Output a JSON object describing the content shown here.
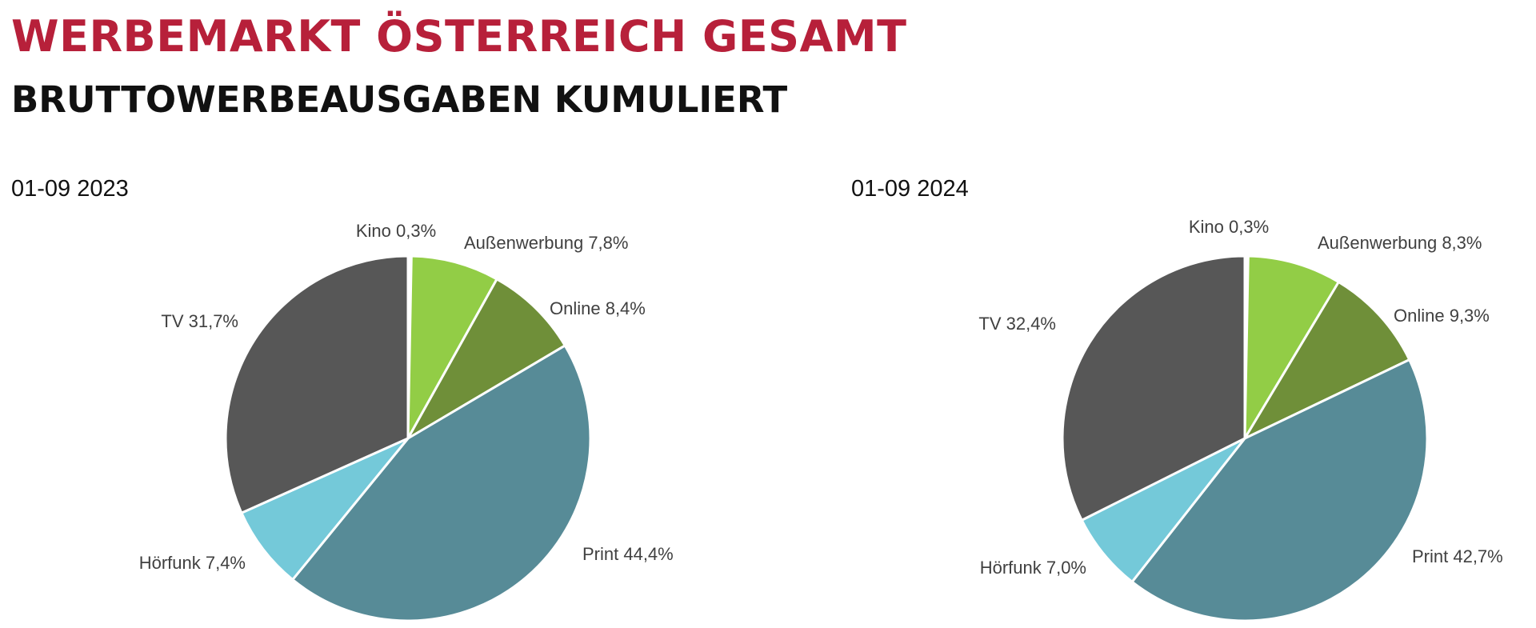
{
  "header": {
    "title": "WERBEMARKT ÖSTERREICH GESAMT",
    "subtitle": "BRUTTOWERBEAUSGABEN KUMULIERT"
  },
  "chart_data": [
    {
      "type": "pie",
      "title": "01-09 2023",
      "slices": [
        {
          "name": "Kino",
          "value": 0.3,
          "label": "Kino 0,3%",
          "color": "#ffffff"
        },
        {
          "name": "Außenwerbung",
          "value": 7.8,
          "label": "Außenwerbung 7,8%",
          "color": "#92cd46"
        },
        {
          "name": "Online",
          "value": 8.4,
          "label": "Online 8,4%",
          "color": "#6f8f39"
        },
        {
          "name": "Print",
          "value": 44.4,
          "label": "Print 44,4%",
          "color": "#578b97"
        },
        {
          "name": "Hörfunk",
          "value": 7.4,
          "label": "Hörfunk 7,4%",
          "color": "#74c9d9"
        },
        {
          "name": "TV",
          "value": 31.7,
          "label": "TV 31,7%",
          "color": "#575757"
        }
      ]
    },
    {
      "type": "pie",
      "title": "01-09 2024",
      "slices": [
        {
          "name": "Kino",
          "value": 0.3,
          "label": "Kino 0,3%",
          "color": "#ffffff"
        },
        {
          "name": "Außenwerbung",
          "value": 8.3,
          "label": "Außenwerbung 8,3%",
          "color": "#92cd46"
        },
        {
          "name": "Online",
          "value": 9.3,
          "label": "Online 9,3%",
          "color": "#6f8f39"
        },
        {
          "name": "Print",
          "value": 42.7,
          "label": "Print 42,7%",
          "color": "#578b97"
        },
        {
          "name": "Hörfunk",
          "value": 7.0,
          "label": "Hörfunk 7,0%",
          "color": "#74c9d9"
        },
        {
          "name": "TV",
          "value": 32.4,
          "label": "TV 32,4%",
          "color": "#575757"
        }
      ]
    }
  ]
}
